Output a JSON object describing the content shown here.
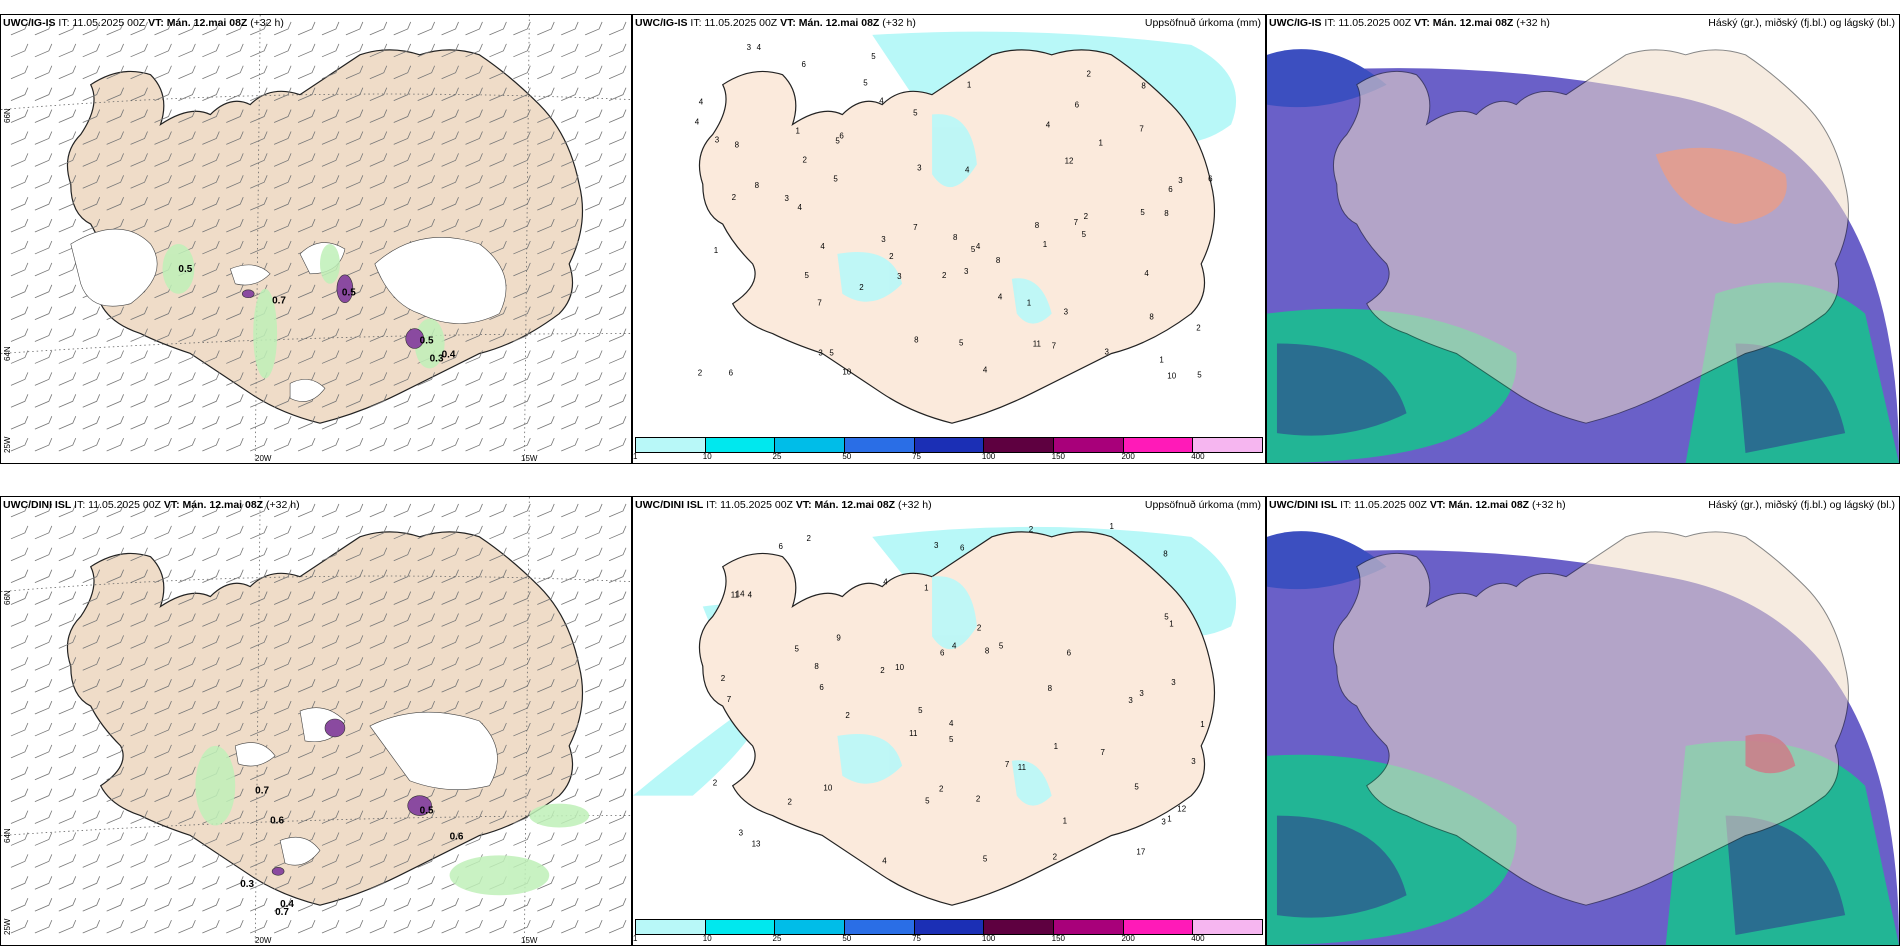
{
  "rows": [
    {
      "panels": [
        {
          "model": "UWC/IG-IS",
          "it": "IT: 11.05.2025 00Z",
          "vt": "VT: Mán. 12.mai 08Z",
          "lead": "(+32 h)",
          "right": ""
        },
        {
          "model": "UWC/IG-IS",
          "it": "IT: 11.05.2025 00Z",
          "vt": "VT: Mán. 12.mai 08Z",
          "lead": "(+32 h)",
          "right": "Uppsöfnuð úrkoma (mm)"
        },
        {
          "model": "UWC/IG-IS",
          "it": "IT: 11.05.2025 00Z",
          "vt": "VT: Mán. 12.mai 08Z",
          "lead": "(+32 h)",
          "right": "Háský (gr.), miðský (fj.bl.) og lágský (bl.)"
        }
      ],
      "precip_labels": [
        "7",
        "6",
        "4",
        "5",
        "3",
        "7",
        "4",
        "8",
        "5",
        "3",
        "6",
        "7",
        "8",
        "7",
        "6",
        "8",
        "7",
        "2",
        "4",
        "5",
        "8",
        "8",
        "6",
        "8",
        "10",
        "4",
        "3",
        "4",
        "5",
        "5",
        "3",
        "2",
        "5",
        "4",
        "8",
        "12",
        "4",
        "3",
        "2",
        "1",
        "2",
        "3",
        "4",
        "5",
        "2",
        "1",
        "5",
        "8",
        "4",
        "3",
        "2",
        "1",
        "4",
        "3",
        "5",
        "5",
        "3",
        "11",
        "10",
        "4",
        "3",
        "2",
        "5",
        "1",
        "8",
        "2",
        "2",
        "1",
        "4",
        "3",
        "6",
        "1",
        "5",
        "1",
        "6"
      ],
      "wind_values": [
        "0.5",
        "0.7",
        "0.5",
        "0.4",
        "0.5",
        "0.3"
      ]
    },
    {
      "panels": [
        {
          "model": "UWC/DINI ISL",
          "it": "IT: 11.05.2025 00Z",
          "vt": "VT: Mán. 12.mai 08Z",
          "lead": "(+32 h)",
          "right": ""
        },
        {
          "model": "UWC/DINI ISL",
          "it": "IT: 11.05.2025 00Z",
          "vt": "VT: Mán. 12.mai 08Z",
          "lead": "(+32 h)",
          "right": "Uppsöfnuð úrkoma (mm)"
        },
        {
          "model": "UWC/DINI ISL",
          "it": "IT: 11.05.2025 00Z",
          "vt": "VT: Mán. 12.mai 08Z",
          "lead": "(+32 h)",
          "right": "Háský (gr.), miðský (fj.bl.) og lágský (bl.)"
        }
      ],
      "precip_labels": [
        "17",
        "13",
        "11",
        "14",
        "6",
        "12",
        "4",
        "5",
        "6",
        "11",
        "6",
        "9",
        "8",
        "8",
        "10",
        "4",
        "2",
        "3",
        "8",
        "6",
        "4",
        "7",
        "5",
        "8",
        "5",
        "2",
        "3",
        "1",
        "11",
        "4",
        "2",
        "2",
        "1",
        "3",
        "5",
        "2",
        "7",
        "5",
        "1",
        "2",
        "3",
        "5",
        "5",
        "2",
        "1",
        "4",
        "5",
        "3",
        "1",
        "6",
        "2",
        "2",
        "1",
        "3",
        "2",
        "3",
        "7",
        "2",
        "1",
        "10"
      ],
      "wind_values": [
        "0.7",
        "0.6",
        "0.3",
        "0.4",
        "0.5",
        "0.6",
        "0.7"
      ]
    }
  ],
  "colorbar": {
    "colors": [
      "#b8f8f8",
      "#00e8ee",
      "#00bde8",
      "#2a6ee6",
      "#1b2fb5",
      "#5e0040",
      "#a8007a",
      "#ff1ab8",
      "#f6b6f0"
    ],
    "ticks": [
      "1",
      "10",
      "25",
      "50",
      "75",
      "100",
      "150",
      "200",
      "400"
    ]
  },
  "axes": {
    "lon_left": "20W",
    "lon_right": "15W",
    "lat_top": "66N",
    "lat_bottom": "64N",
    "lat_corner": "25W"
  }
}
